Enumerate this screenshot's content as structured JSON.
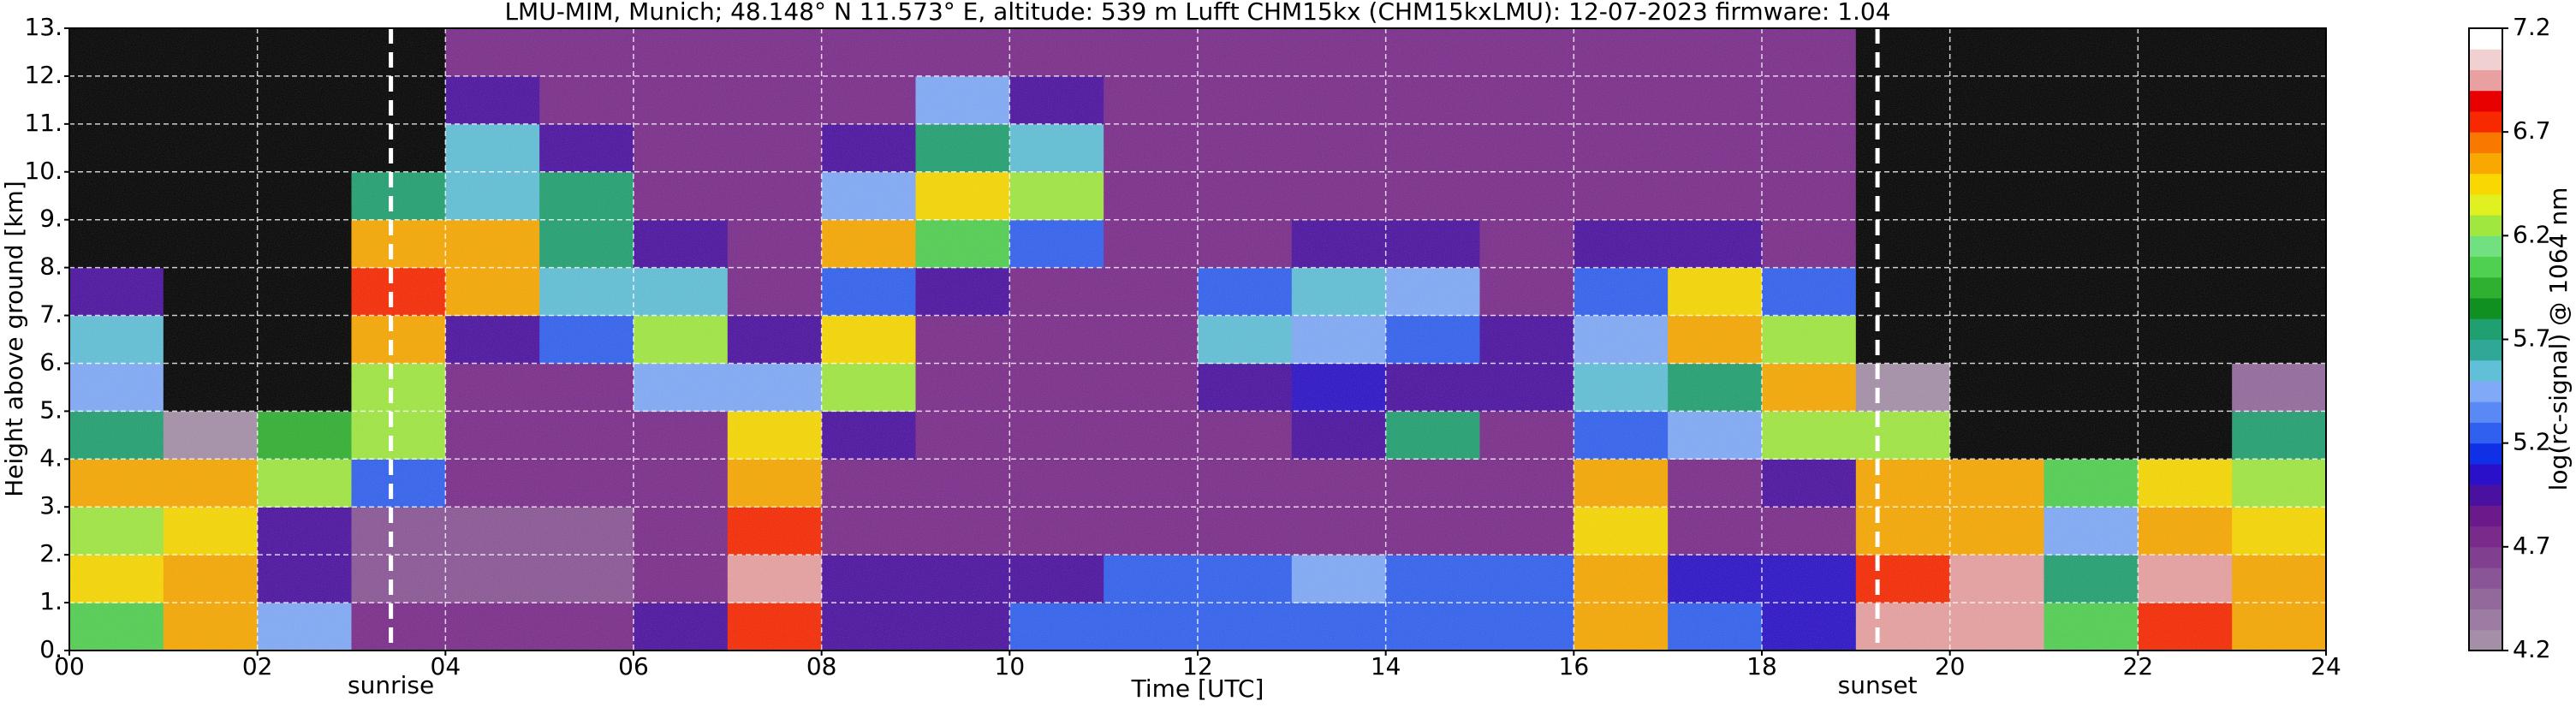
{
  "chart_data": {
    "type": "heatmap",
    "title": "LMU-MIM, Munich; 48.148° N 11.573° E, altitude: 539 m    Lufft CHM15kx (CHM15kxLMU): 12-07-2023    firmware: 1.04",
    "xlabel": "Time [UTC]",
    "ylabel": "Height above ground [km]",
    "x": [
      0,
      1,
      2,
      3,
      4,
      5,
      6,
      7,
      8,
      9,
      10,
      11,
      12,
      13,
      14,
      15,
      16,
      17,
      18,
      19,
      20,
      21,
      22,
      23
    ],
    "y": [
      0,
      1,
      2,
      3,
      4,
      5,
      6,
      7,
      8,
      9,
      10,
      11,
      12
    ],
    "z": [
      [
        6.0,
        6.5,
        5.4,
        4.8,
        4.8,
        4.8,
        5.0,
        6.8,
        5.0,
        5.0,
        5.2,
        5.3,
        5.3,
        5.3,
        5.3,
        5.3,
        6.5,
        5.2,
        5.1,
        6.9,
        7.0,
        6.0,
        6.8,
        6.5
      ],
      [
        6.4,
        6.6,
        5.0,
        4.6,
        4.6,
        4.6,
        4.7,
        6.9,
        4.9,
        4.9,
        5.0,
        5.2,
        5.3,
        5.4,
        5.2,
        5.2,
        6.5,
        5.1,
        5.1,
        6.8,
        7.0,
        5.8,
        6.9,
        6.5
      ],
      [
        6.3,
        6.4,
        4.9,
        4.6,
        4.6,
        4.6,
        4.8,
        6.8,
        4.7,
        4.7,
        4.7,
        4.7,
        4.8,
        4.8,
        4.8,
        4.7,
        6.4,
        4.7,
        4.8,
        6.5,
        6.6,
        5.5,
        6.5,
        6.4
      ],
      [
        6.6,
        6.5,
        6.2,
        5.2,
        4.8,
        4.8,
        4.8,
        6.6,
        4.8,
        4.8,
        4.8,
        4.8,
        4.8,
        4.8,
        4.8,
        4.8,
        6.5,
        4.8,
        4.9,
        6.6,
        6.5,
        6.0,
        6.4,
        6.3
      ],
      [
        5.8,
        4.2,
        5.9,
        6.2,
        4.8,
        4.8,
        4.8,
        6.4,
        4.9,
        4.8,
        4.8,
        4.8,
        4.8,
        4.9,
        5.8,
        4.8,
        5.2,
        5.4,
        6.3,
        6.2,
        3.5,
        3.8,
        3.5,
        5.8
      ],
      [
        5.4,
        3.6,
        4.0,
        6.3,
        4.8,
        4.8,
        5.4,
        5.4,
        6.3,
        4.8,
        4.8,
        4.8,
        4.9,
        5.1,
        5.0,
        5.0,
        5.6,
        5.8,
        6.6,
        4.2,
        3.5,
        3.5,
        3.5,
        4.5
      ],
      [
        5.6,
        3.6,
        3.5,
        6.6,
        4.9,
        5.3,
        6.3,
        5.0,
        6.4,
        4.8,
        4.8,
        4.8,
        5.6,
        5.4,
        5.2,
        4.9,
        5.4,
        6.5,
        6.2,
        3.6,
        3.5,
        3.5,
        3.5,
        3.5
      ],
      [
        5.0,
        3.5,
        3.5,
        6.8,
        6.6,
        5.6,
        5.6,
        4.8,
        5.2,
        4.9,
        4.8,
        4.8,
        5.2,
        5.6,
        5.4,
        4.8,
        5.3,
        6.4,
        5.3,
        3.5,
        3.5,
        3.5,
        3.5,
        3.5
      ],
      [
        3.5,
        3.5,
        3.5,
        6.6,
        6.5,
        5.8,
        4.9,
        4.8,
        6.5,
        6.0,
        5.2,
        4.8,
        4.8,
        4.9,
        4.9,
        4.8,
        4.9,
        5.0,
        4.8,
        3.5,
        3.5,
        3.5,
        3.5,
        3.5
      ],
      [
        3.5,
        3.5,
        3.5,
        5.8,
        5.6,
        5.7,
        4.8,
        4.8,
        5.4,
        6.4,
        6.2,
        4.8,
        4.8,
        4.8,
        4.8,
        4.8,
        4.8,
        4.8,
        4.8,
        3.5,
        3.5,
        3.5,
        3.5,
        3.5
      ],
      [
        3.5,
        3.5,
        3.5,
        3.6,
        5.6,
        5.0,
        4.8,
        4.8,
        5.0,
        5.8,
        5.6,
        4.8,
        4.8,
        4.8,
        4.8,
        4.8,
        4.8,
        4.8,
        4.8,
        3.5,
        3.5,
        3.5,
        3.5,
        3.5
      ],
      [
        3.5,
        3.5,
        3.5,
        3.5,
        5.0,
        4.8,
        4.8,
        4.8,
        4.8,
        5.4,
        4.9,
        4.8,
        4.8,
        4.8,
        4.8,
        4.8,
        4.8,
        4.8,
        4.8,
        3.5,
        3.5,
        3.5,
        3.5,
        3.5
      ],
      [
        3.5,
        3.5,
        3.5,
        3.5,
        4.8,
        4.8,
        4.8,
        4.8,
        4.8,
        4.8,
        4.8,
        4.8,
        4.8,
        4.8,
        4.8,
        4.8,
        4.8,
        4.8,
        4.8,
        3.5,
        3.5,
        3.5,
        3.5,
        3.5
      ]
    ],
    "xlim": [
      0,
      24
    ],
    "ylim": [
      0,
      13
    ],
    "xticks": [
      {
        "value": 0,
        "label": "00"
      },
      {
        "value": 2,
        "label": "02"
      },
      {
        "value": 4,
        "label": "04"
      },
      {
        "value": 6,
        "label": "06"
      },
      {
        "value": 8,
        "label": "08"
      },
      {
        "value": 10,
        "label": "10"
      },
      {
        "value": 12,
        "label": "12"
      },
      {
        "value": 14,
        "label": "14"
      },
      {
        "value": 16,
        "label": "16"
      },
      {
        "value": 18,
        "label": "18"
      },
      {
        "value": 20,
        "label": "20"
      },
      {
        "value": 22,
        "label": "22"
      },
      {
        "value": 24,
        "label": "24"
      }
    ],
    "yticks": [
      {
        "value": 0,
        "label": "0."
      },
      {
        "value": 1,
        "label": "1."
      },
      {
        "value": 2,
        "label": "2."
      },
      {
        "value": 3,
        "label": "3."
      },
      {
        "value": 4,
        "label": "4."
      },
      {
        "value": 5,
        "label": "5."
      },
      {
        "value": 6,
        "label": "6."
      },
      {
        "value": 7,
        "label": "7."
      },
      {
        "value": 8,
        "label": "8."
      },
      {
        "value": 9,
        "label": "9."
      },
      {
        "value": 10,
        "label": "10."
      },
      {
        "value": 11,
        "label": "11."
      },
      {
        "value": 12,
        "label": "12."
      },
      {
        "value": 13,
        "label": "13."
      }
    ],
    "grid": true,
    "annotations": [
      {
        "text": "sunrise",
        "x": 3.42
      },
      {
        "text": "sunset",
        "x": 19.23
      }
    ],
    "under_color": "#000000",
    "colorbar": {
      "label": "log(rc-signal) @ 1064 nm",
      "lim": [
        4.2,
        7.2
      ],
      "ticks": [
        4.2,
        4.7,
        5.2,
        5.7,
        6.2,
        6.7,
        7.2
      ],
      "colors": [
        "#a58fa8",
        "#9c7ca2",
        "#93699c",
        "#8a5596",
        "#80408f",
        "#7a2a8a",
        "#6a1a8a",
        "#4a10a0",
        "#2a10c8",
        "#1030e8",
        "#3060f0",
        "#5a88f5",
        "#80aaf8",
        "#60c0d8",
        "#30a898",
        "#20a070",
        "#109020",
        "#30b030",
        "#50d050",
        "#70e080",
        "#a0e840",
        "#e0f020",
        "#f8d800",
        "#f8a800",
        "#f87800",
        "#f82800",
        "#e80000",
        "#e8a0a0",
        "#f0d0d0",
        "#ffffff"
      ]
    }
  }
}
